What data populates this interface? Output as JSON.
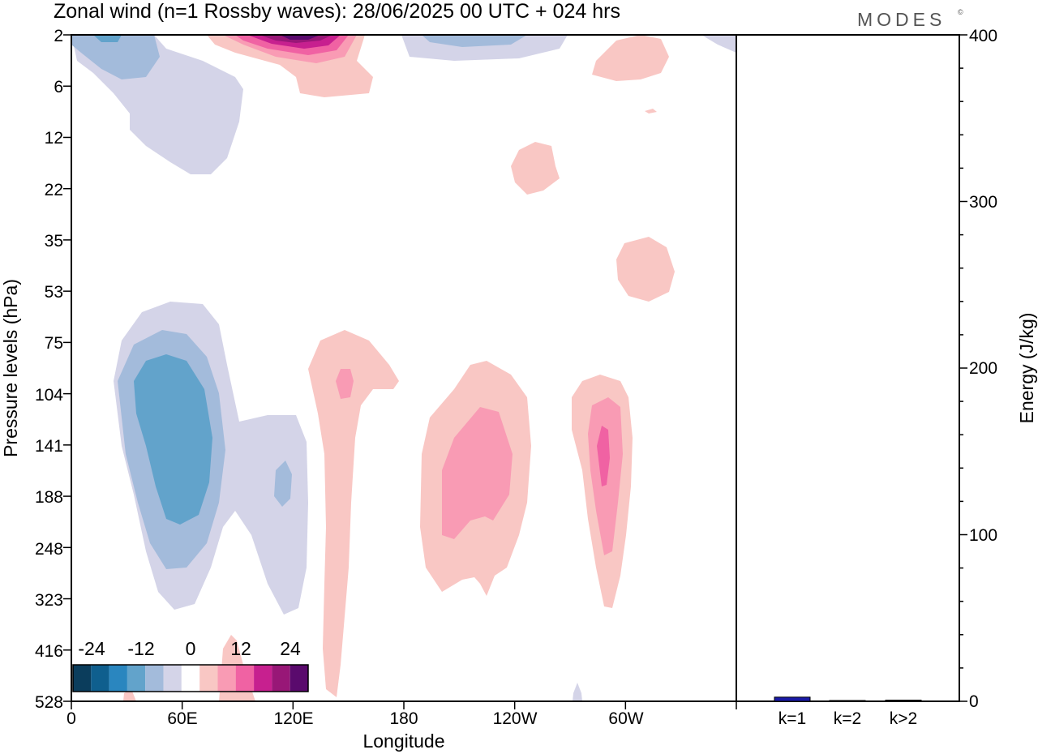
{
  "header": {
    "title": "Zonal wind (n=1 Rossby waves):  28/06/2025  00 UTC  + 024 hrs",
    "logo": "MODES",
    "logo_mark": "©"
  },
  "chart_data": [
    {
      "type": "contour",
      "xlabel": "Longitude",
      "ylabel": "Pressure levels (hPa)",
      "x_ticks": [
        "0",
        "60E",
        "120E",
        "180",
        "120W",
        "60W"
      ],
      "y_ticks": [
        "2",
        "6",
        "12",
        "22",
        "35",
        "53",
        "75",
        "104",
        "141",
        "188",
        "248",
        "323",
        "416",
        "528"
      ],
      "y_scale": "log, reversed",
      "legend_placement": "bottom-left",
      "colorbar": {
        "labels": [
          "-24",
          "-12",
          "0",
          "12",
          "24"
        ],
        "colors": [
          "#0b3d5c",
          "#0f5f8e",
          "#2a86bf",
          "#62a3cb",
          "#a3bbdb",
          "#d4d4e8",
          "#ffffff",
          "#f9c7c4",
          "#f99bb4",
          "#f062a3",
          "#c7208f",
          "#981777",
          "#5a0a6d"
        ]
      },
      "regions": [
        {
          "level": -12,
          "color": "#62a3cb",
          "approx_lon_range": [
            35,
            75
          ],
          "approx_pressure_range": [
            90,
            230
          ]
        },
        {
          "level": -8,
          "color": "#a3bbdb",
          "approx_lon_range": [
            20,
            85
          ],
          "approx_pressure_range": [
            75,
            280
          ]
        },
        {
          "level": -4,
          "color": "#d4d4e8",
          "approx_lon_range": [
            10,
            140
          ],
          "approx_pressure_range": [
            55,
            340
          ]
        },
        {
          "level": 4,
          "color": "#f9c7c4",
          "approx_lon_range": [
            140,
            160
          ],
          "approx_pressure_range": [
            75,
            528
          ]
        },
        {
          "level": 8,
          "color": "#f99bb4",
          "approx_lon_range": [
            200,
            240
          ],
          "approx_pressure_range": [
            115,
            230
          ]
        },
        {
          "level": 12,
          "color": "#f062a3",
          "approx_lon_range": [
            295,
            305
          ],
          "approx_pressure_range": [
            125,
            200
          ]
        },
        {
          "level": 24,
          "color": "#5a0a6d",
          "approx_lon_range": [
            115,
            135
          ],
          "approx_pressure_range": [
            2,
            3
          ]
        }
      ]
    },
    {
      "type": "bar",
      "ylabel": "Energy (J/kg)",
      "categories": [
        "k=1",
        "k=2",
        "k>2"
      ],
      "values": [
        2.5,
        0.3,
        0.7
      ],
      "ylim": [
        0,
        400
      ],
      "y_ticks": [
        "0",
        "100",
        "200",
        "300",
        "400"
      ],
      "colors": {
        "k=1": "#1a1aa6",
        "k=2": "#000000",
        "k>2": "#000000"
      }
    }
  ]
}
